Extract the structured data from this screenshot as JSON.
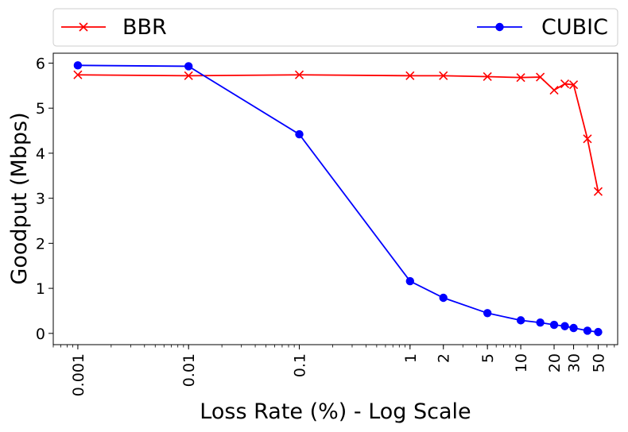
{
  "chart_data": {
    "type": "line",
    "xscale": "log",
    "xlabel": "Loss Rate (%) - Log Scale",
    "ylabel": "Goodput (Mbps)",
    "xlim": [
      0.0006,
      75
    ],
    "ylim": [
      -0.25,
      6.22
    ],
    "xticks": [
      0.001,
      0.01,
      0.1,
      1,
      2,
      5,
      10,
      20,
      30,
      50
    ],
    "xtick_labels": [
      "0.001",
      "0.01",
      "0.1",
      "1",
      "2",
      "5",
      "10",
      "20",
      "30",
      "50"
    ],
    "yticks": [
      0,
      1,
      2,
      3,
      4,
      5,
      6
    ],
    "ytick_labels": [
      "0",
      "1",
      "2",
      "3",
      "4",
      "5",
      "6"
    ],
    "grid": false,
    "legend_placement": "top, outside",
    "series": [
      {
        "name": "BBR",
        "color": "#ff0000",
        "marker": "x",
        "x": [
          0.001,
          0.01,
          0.1,
          1,
          2,
          5,
          10,
          15,
          20,
          25,
          30,
          40,
          50
        ],
        "y": [
          5.74,
          5.72,
          5.74,
          5.72,
          5.72,
          5.7,
          5.68,
          5.69,
          5.4,
          5.54,
          5.52,
          4.32,
          3.15
        ]
      },
      {
        "name": "CUBIC",
        "color": "#0000ff",
        "marker": "o",
        "x": [
          0.001,
          0.01,
          0.1,
          1,
          2,
          5,
          10,
          15,
          20,
          25,
          30,
          40,
          50
        ],
        "y": [
          5.95,
          5.93,
          4.42,
          1.16,
          0.79,
          0.45,
          0.29,
          0.24,
          0.19,
          0.16,
          0.12,
          0.06,
          0.03
        ]
      }
    ]
  }
}
